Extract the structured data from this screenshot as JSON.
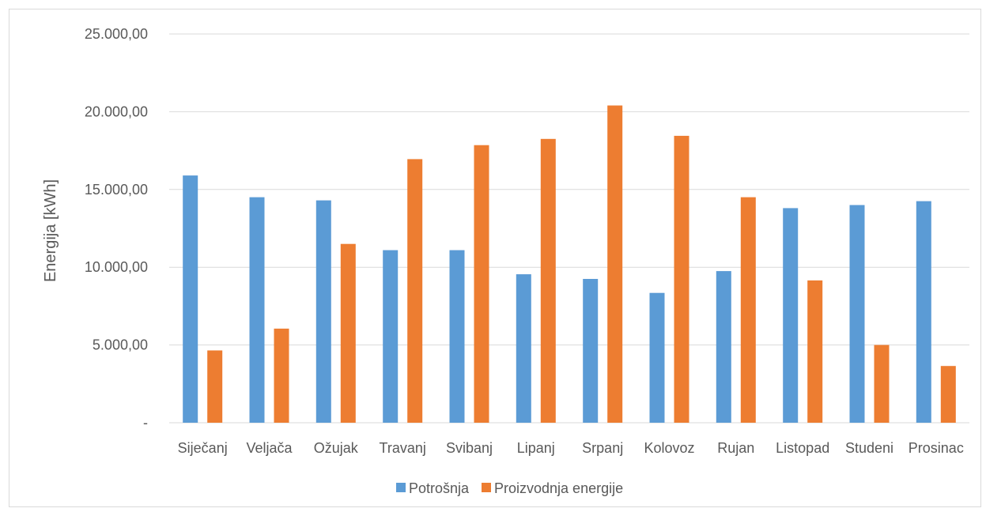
{
  "chart_data": {
    "type": "bar",
    "ylabel": "Energija [kWh]",
    "ylim": [
      0,
      25000
    ],
    "yticks": [
      0,
      5000,
      10000,
      15000,
      20000,
      25000
    ],
    "ytick_labels": [
      "-",
      "5.000,00",
      "10.000,00",
      "15.000,00",
      "20.000,00",
      "25.000,00"
    ],
    "grid": "horizontal",
    "legend_position": "bottom",
    "categories": [
      "Siječanj",
      "Veljača",
      "Ožujak",
      "Travanj",
      "Svibanj",
      "Lipanj",
      "Srpanj",
      "Kolovoz",
      "Rujan",
      "Listopad",
      "Studeni",
      "Prosinac"
    ],
    "series": [
      {
        "name": "Potrošnja",
        "color": "#5b9bd5",
        "values": [
          15900,
          14500,
          14300,
          11100,
          11100,
          9550,
          9250,
          8350,
          9750,
          13800,
          14000,
          14250
        ]
      },
      {
        "name": "Proizvodnja energije",
        "color": "#ed7d31",
        "values": [
          4650,
          6050,
          11500,
          16950,
          17850,
          18250,
          20400,
          18450,
          14500,
          9150,
          5000,
          3650
        ]
      }
    ]
  }
}
